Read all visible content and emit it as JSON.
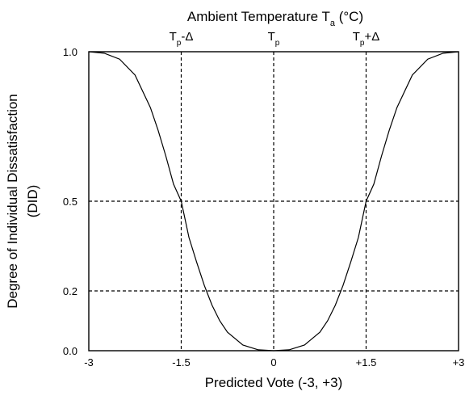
{
  "chart_data": {
    "type": "line",
    "top_axis": {
      "title_main": "Ambient Temperature T",
      "title_sub": "a",
      "title_unit": " (°C)",
      "ticks": [
        {
          "x": -1.5,
          "main": "T",
          "sub": "p",
          "suffix": "-Δ"
        },
        {
          "x": 0,
          "main": "T",
          "sub": "p",
          "suffix": ""
        },
        {
          "x": 1.5,
          "main": "T",
          "sub": "p",
          "suffix": "+Δ"
        }
      ]
    },
    "xlabel": "Predicted Vote (-3, +3)",
    "ylabel_line1": "Degree of Individual Dissatisfaction",
    "ylabel_line2": "(DID)",
    "xlim": [
      -3,
      3
    ],
    "ylim": [
      0,
      1
    ],
    "x_ticks": [
      {
        "value": -3,
        "label": "-3"
      },
      {
        "value": -1.5,
        "label": "-1.5"
      },
      {
        "value": 0,
        "label": "0"
      },
      {
        "value": 1.5,
        "label": "+1.5"
      },
      {
        "value": 3,
        "label": "+3"
      }
    ],
    "y_ticks": [
      {
        "value": 0,
        "label": "0.0"
      },
      {
        "value": 0.2,
        "label": "0.2"
      },
      {
        "value": 0.5,
        "label": "0.5"
      },
      {
        "value": 1,
        "label": "1.0"
      }
    ],
    "reference_lines": {
      "vertical": [
        -1.5,
        0,
        1.5
      ],
      "horizontal": [
        0.2,
        0.5
      ],
      "style": "dashed"
    },
    "series": [
      {
        "x": [
          -3,
          -2.75,
          -2.5,
          -2.25,
          -2,
          -1.875,
          -1.75,
          -1.625,
          -1.5,
          -1.375,
          -1.25,
          -1.125,
          -1,
          -0.875,
          -0.75,
          -0.5,
          -0.25,
          0,
          0.25,
          0.5,
          0.75,
          0.875,
          1,
          1.125,
          1.25,
          1.375,
          1.5,
          1.625,
          1.75,
          1.875,
          2,
          2.25,
          2.5,
          2.75,
          3
        ],
        "y": [
          1,
          0.995,
          0.975,
          0.922,
          0.813,
          0.737,
          0.651,
          0.557,
          0.5,
          0.379,
          0.296,
          0.218,
          0.152,
          0.1,
          0.062,
          0.019,
          0.003,
          0,
          0.003,
          0.019,
          0.062,
          0.1,
          0.152,
          0.218,
          0.296,
          0.379,
          0.5,
          0.557,
          0.651,
          0.737,
          0.813,
          0.922,
          0.975,
          0.995,
          1
        ]
      }
    ]
  }
}
